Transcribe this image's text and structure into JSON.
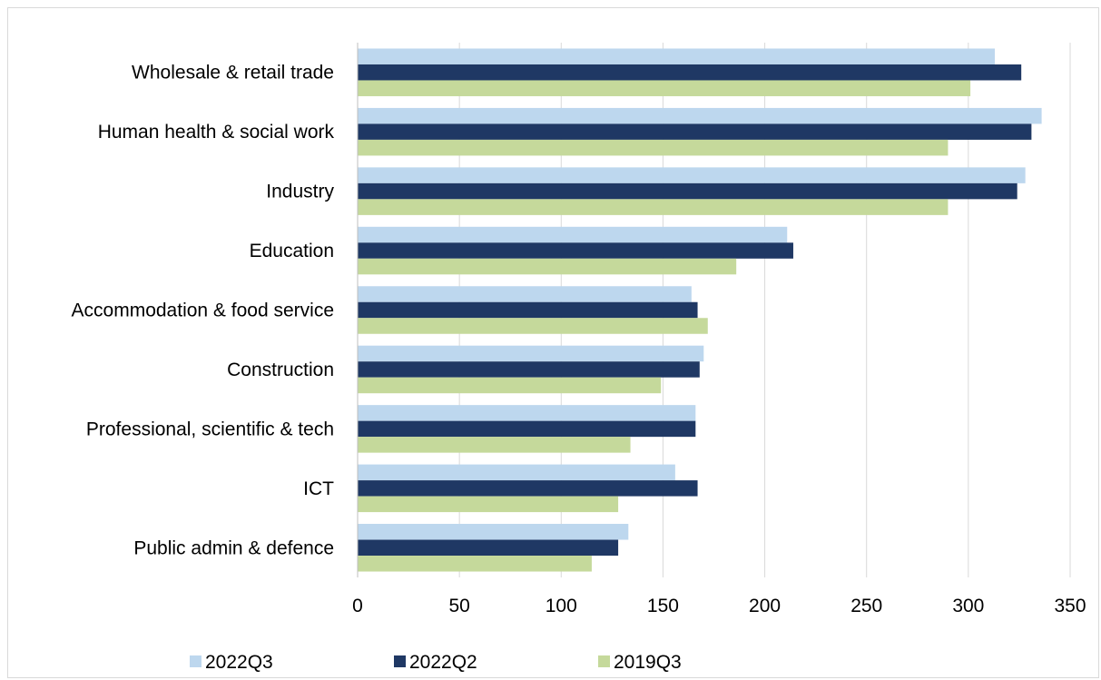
{
  "chart_data": {
    "type": "bar",
    "orientation": "horizontal",
    "categories": [
      "Wholesale & retail trade",
      "Human health & social work",
      "Industry",
      "Education",
      "Accommodation & food service",
      "Construction",
      "Professional, scientific & tech",
      "ICT",
      "Public admin & defence"
    ],
    "series": [
      {
        "name": "2022Q3",
        "color": "#bdd7ee",
        "values": [
          313,
          336,
          328,
          211,
          164,
          170,
          166,
          156,
          133
        ]
      },
      {
        "name": "2022Q2",
        "color": "#1f3864",
        "values": [
          326,
          331,
          324,
          214,
          167,
          168,
          166,
          167,
          128
        ]
      },
      {
        "name": "2019Q3",
        "color": "#c5d99b",
        "values": [
          301,
          290,
          290,
          186,
          172,
          149,
          134,
          128,
          115
        ]
      }
    ],
    "xlim": [
      0,
      350
    ],
    "xticks": [
      "0",
      "50",
      "100",
      "150",
      "200",
      "250",
      "300",
      "350"
    ],
    "grid": "vertical",
    "legend_position": "bottom"
  }
}
